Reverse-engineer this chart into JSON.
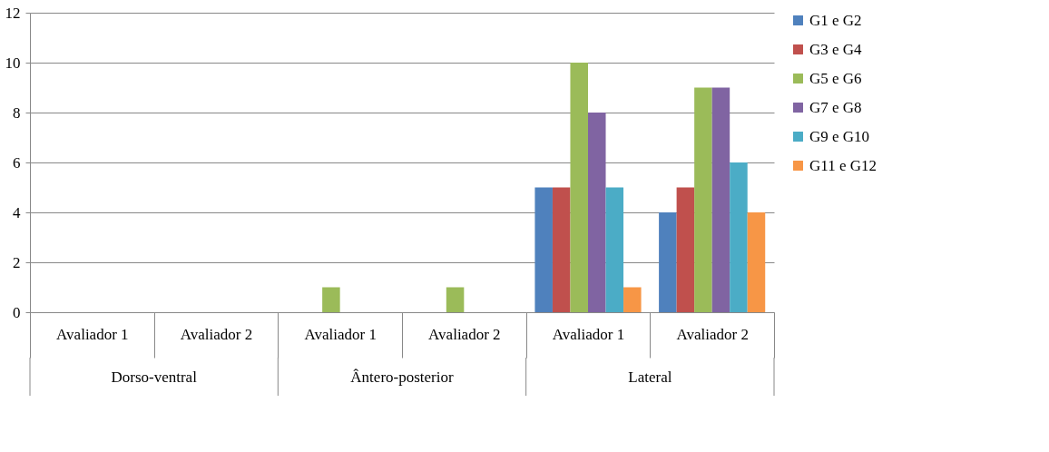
{
  "chart_data": {
    "type": "bar",
    "categories": [
      "Avaliador 1",
      "Avaliador 2",
      "Avaliador 1",
      "Avaliador 2",
      "Avaliador 1",
      "Avaliador 2"
    ],
    "annotations": [
      "Dorso-ventral",
      "Ântero-posterior",
      "Lateral"
    ],
    "series": [
      {
        "name": "G1 e G2",
        "color": "#4f81bd",
        "values": [
          0,
          0,
          0,
          0,
          5,
          4
        ]
      },
      {
        "name": "G3 e G4",
        "color": "#c0504d",
        "values": [
          0,
          0,
          0,
          0,
          5,
          5
        ]
      },
      {
        "name": "G5 e G6",
        "color": "#9bbb59",
        "values": [
          0,
          0,
          1,
          1,
          10,
          9
        ]
      },
      {
        "name": "G7 e G8",
        "color": "#8064a2",
        "values": [
          0,
          0,
          0,
          0,
          8,
          9
        ]
      },
      {
        "name": "G9 e G10",
        "color": "#4bacc6",
        "values": [
          0,
          0,
          0,
          0,
          5,
          6
        ]
      },
      {
        "name": "G11 e G12",
        "color": "#f79646",
        "values": [
          0,
          0,
          0,
          0,
          1,
          4
        ]
      }
    ],
    "ylim": [
      0,
      12
    ],
    "yticks": [
      0,
      2,
      4,
      6,
      8,
      10,
      12
    ],
    "grid": "y",
    "legend": "right"
  }
}
